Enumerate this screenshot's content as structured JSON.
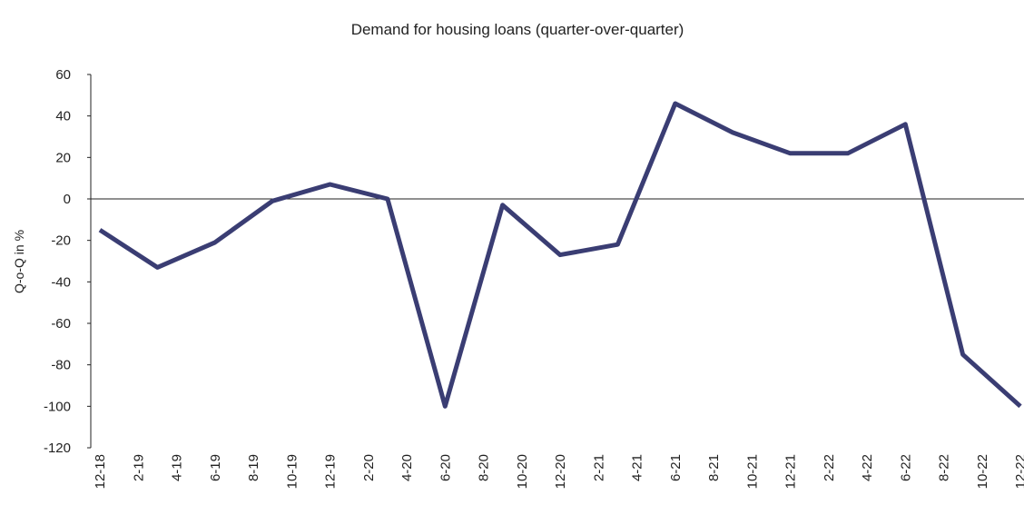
{
  "chart_data": {
    "type": "line",
    "title": "Demand for housing loans (quarter-over-quarter)",
    "y_label": "Q-o-Q in %",
    "x": [
      "12-18",
      "3-19",
      "6-19",
      "9-19",
      "12-19",
      "3-20",
      "6-20",
      "9-20",
      "12-20",
      "3-21",
      "6-21",
      "9-21",
      "12-21",
      "3-22",
      "6-22",
      "9-22",
      "12-22"
    ],
    "series": [
      {
        "name": "Demand for housing loans",
        "color": "#3a3d73",
        "values": [
          -15,
          -33,
          -21,
          -1,
          7,
          0,
          -100,
          -3,
          -27,
          -22,
          46,
          32,
          22,
          22,
          36,
          -75,
          -100
        ]
      }
    ],
    "xlim": [
      "12-18",
      "12-22"
    ],
    "xticks": [
      "12-18",
      "2-19",
      "4-19",
      "6-19",
      "8-19",
      "10-19",
      "12-19",
      "2-20",
      "4-20",
      "6-20",
      "8-20",
      "10-20",
      "12-20",
      "2-21",
      "4-21",
      "6-21",
      "8-21",
      "10-21",
      "12-21",
      "2-22",
      "4-22",
      "6-22",
      "8-22",
      "10-22",
      "12-22"
    ],
    "ylim": [
      -120,
      60
    ],
    "yticks": [
      -120,
      -100,
      -80,
      -60,
      -40,
      -20,
      0,
      20,
      40,
      60
    ],
    "grid": false
  }
}
